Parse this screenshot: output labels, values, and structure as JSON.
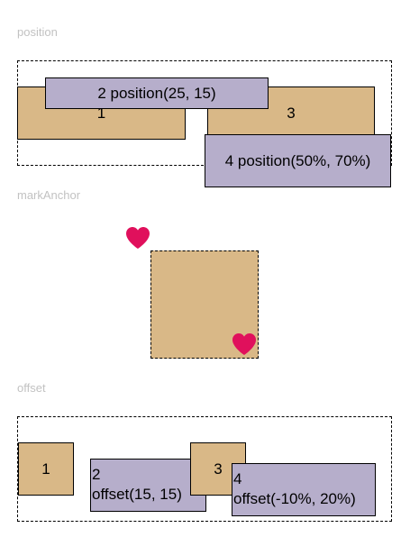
{
  "sections": {
    "position": {
      "label": "position"
    },
    "markAnchor": {
      "label": "markAnchor"
    },
    "offset": {
      "label": "offset"
    }
  },
  "position_demo": {
    "box1": "1",
    "box2": "2 position(25, 15)",
    "box3": "3",
    "box4": "4 position(50%, 70%)"
  },
  "offset_demo": {
    "box1": "1",
    "box2_line1": "2",
    "box2_line2": "offset(15, 15)",
    "box3": "3",
    "box4_line1": "4",
    "box4_line2": "offset(-10%, 20%)"
  },
  "colors": {
    "tan": "#d9b887",
    "lavender": "#b6aecb",
    "heart": "#e0105c",
    "label": "#c2c2c2"
  },
  "icons": {
    "heart": "heart-icon"
  }
}
